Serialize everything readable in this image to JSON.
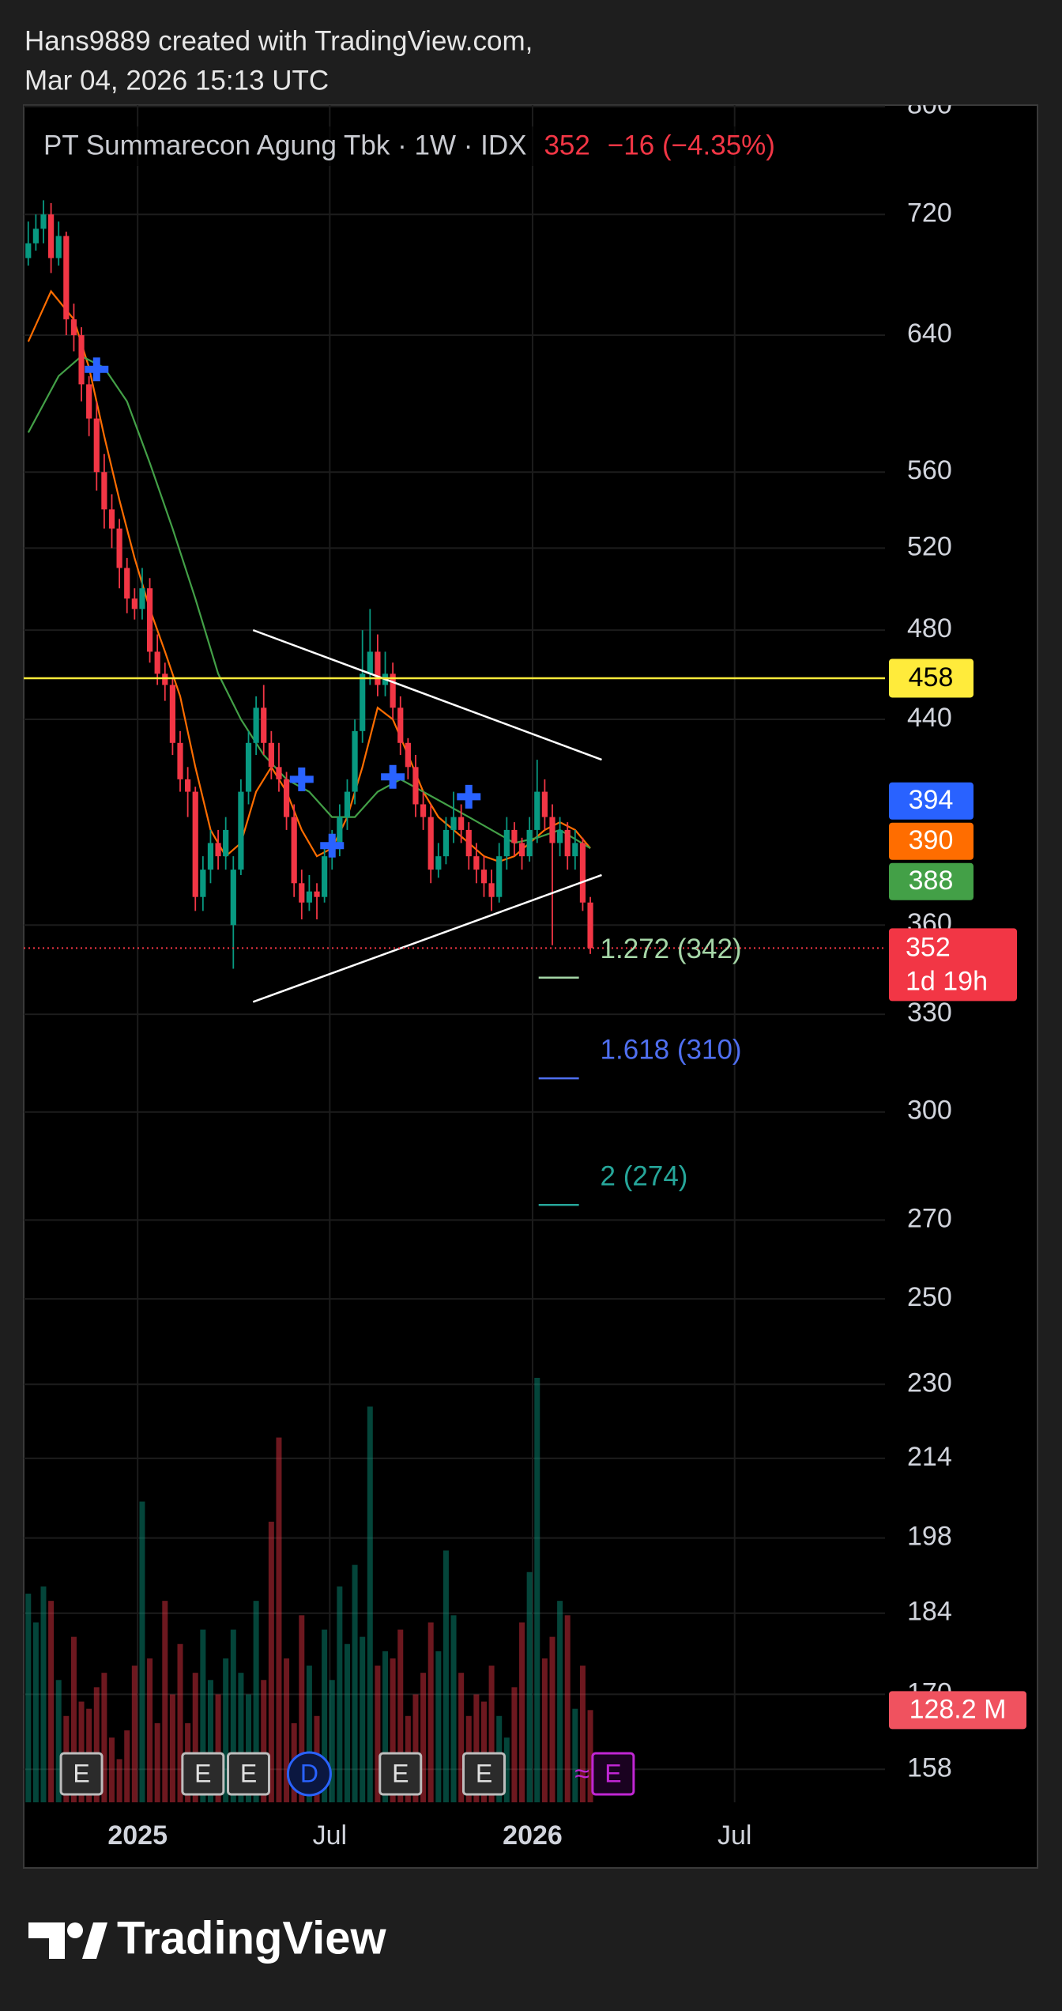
{
  "header": {
    "line1": "Hans9889 created with TradingView.com,",
    "line2": "Mar 04, 2026 15:13 UTC"
  },
  "footer": {
    "brand": "TradingView"
  },
  "chart_data": {
    "type": "candlestick",
    "log_scale": true,
    "grid": true,
    "legend": {
      "title": "PT Summarecon Agung Tbk · 1W · IDX",
      "change": "−16 (−4.35%)"
    },
    "up_color": "#089981",
    "down_color": "#f23645",
    "xlim": [
      -0.6,
      112.8
    ],
    "xticks": [
      {
        "value": 14.4,
        "label": "2025"
      },
      {
        "value": 39.7,
        "label": "Jul"
      },
      {
        "value": 66.4,
        "label": "2026"
      },
      {
        "value": 93,
        "label": "Jul"
      }
    ],
    "ylim": [
      153,
      801
    ],
    "yticks": [
      800,
      720,
      640,
      560,
      520,
      480,
      440,
      360,
      330,
      300,
      270,
      250,
      230,
      214,
      198,
      184,
      170,
      158
    ],
    "open": [
      690,
      700,
      710,
      720,
      690,
      705,
      650,
      640,
      610,
      590,
      560,
      540,
      530,
      510,
      495,
      490,
      500,
      470,
      460,
      455,
      430,
      415,
      410,
      370,
      380,
      390,
      385,
      360,
      380,
      410,
      430,
      445,
      430,
      420,
      415,
      400,
      375,
      368,
      372,
      370,
      385,
      390,
      400,
      410,
      435,
      460,
      470,
      455,
      460,
      445,
      430,
      420,
      405,
      400,
      380,
      385,
      395,
      400,
      395,
      385,
      380,
      375,
      370,
      385,
      395,
      390,
      385,
      395,
      410,
      400,
      390,
      395,
      385,
      390,
      368
    ],
    "high": [
      715,
      720,
      730,
      728,
      715,
      708,
      660,
      645,
      615,
      600,
      570,
      548,
      535,
      515,
      500,
      510,
      505,
      478,
      465,
      458,
      435,
      420,
      412,
      385,
      395,
      395,
      400,
      385,
      415,
      435,
      450,
      455,
      435,
      430,
      418,
      405,
      380,
      378,
      375,
      390,
      395,
      405,
      415,
      440,
      480,
      490,
      478,
      470,
      465,
      450,
      432,
      425,
      410,
      405,
      390,
      400,
      410,
      405,
      398,
      390,
      385,
      380,
      390,
      400,
      398,
      392,
      400,
      423,
      415,
      405,
      400,
      398,
      395,
      392,
      370
    ],
    "low": [
      685,
      695,
      700,
      680,
      685,
      640,
      630,
      600,
      580,
      550,
      530,
      520,
      500,
      488,
      485,
      485,
      465,
      455,
      448,
      425,
      410,
      400,
      365,
      365,
      375,
      380,
      380,
      345,
      378,
      405,
      425,
      425,
      415,
      410,
      395,
      370,
      362,
      365,
      362,
      368,
      380,
      385,
      395,
      405,
      430,
      455,
      450,
      450,
      440,
      425,
      415,
      400,
      395,
      375,
      377,
      382,
      390,
      390,
      380,
      375,
      370,
      365,
      368,
      380,
      385,
      380,
      383,
      390,
      395,
      353,
      385,
      380,
      380,
      365,
      350
    ],
    "close": [
      700,
      710,
      720,
      690,
      705,
      650,
      640,
      610,
      590,
      560,
      540,
      530,
      510,
      495,
      490,
      500,
      470,
      460,
      455,
      430,
      415,
      410,
      370,
      380,
      390,
      385,
      395,
      380,
      410,
      430,
      445,
      430,
      420,
      415,
      400,
      375,
      368,
      372,
      370,
      385,
      390,
      400,
      410,
      435,
      460,
      470,
      455,
      460,
      445,
      430,
      420,
      405,
      400,
      380,
      385,
      395,
      400,
      395,
      385,
      380,
      375,
      370,
      385,
      395,
      390,
      385,
      395,
      410,
      400,
      390,
      395,
      385,
      390,
      368,
      352
    ],
    "volume": {
      "label": "128.2 M",
      "values": [
        290,
        250,
        300,
        280,
        170,
        120,
        230,
        140,
        130,
        160,
        180,
        90,
        60,
        100,
        190,
        418,
        200,
        110,
        280,
        150,
        220,
        110,
        180,
        240,
        170,
        150,
        200,
        240,
        180,
        150,
        280,
        170,
        390,
        507,
        200,
        110,
        260,
        190,
        120,
        240,
        170,
        300,
        220,
        330,
        230,
        550,
        190,
        210,
        200,
        240,
        120,
        150,
        180,
        250,
        210,
        350,
        260,
        180,
        120,
        150,
        140,
        190,
        120,
        90,
        160,
        250,
        320,
        590,
        200,
        230,
        280,
        260,
        130,
        190,
        128.2
      ]
    },
    "moving_averages": [
      {
        "color": "#ff6d00",
        "x": [
          0,
          3,
          6,
          8,
          10,
          12,
          14,
          16,
          18,
          20,
          22,
          24,
          26,
          28,
          30,
          32,
          34,
          36,
          38,
          40,
          42,
          44,
          46,
          48,
          50,
          52,
          54,
          56,
          58,
          60,
          62,
          64,
          66,
          68,
          70,
          72,
          74
        ],
        "values": [
          636,
          668,
          650,
          620,
          580,
          545,
          515,
          490,
          470,
          450,
          420,
          395,
          385,
          390,
          410,
          420,
          410,
          395,
          385,
          388,
          400,
          420,
          445,
          440,
          425,
          410,
          400,
          395,
          390,
          385,
          383,
          385,
          390,
          395,
          398,
          395,
          388
        ]
      },
      {
        "color": "#43a047",
        "x": [
          0,
          4,
          7,
          10,
          13,
          16,
          19,
          22,
          25,
          28,
          31,
          34,
          37,
          40,
          43,
          46,
          49,
          52,
          55,
          58,
          61,
          64,
          67,
          70,
          74
        ],
        "values": [
          582,
          615,
          627,
          620,
          600,
          565,
          530,
          495,
          460,
          440,
          425,
          415,
          410,
          400,
          400,
          410,
          415,
          410,
          405,
          400,
          395,
          390,
          392,
          395,
          388
        ]
      }
    ],
    "ma_labels": [
      {
        "value": 394,
        "color": "#2962ff"
      },
      {
        "value": 390,
        "color": "#ff6d00"
      },
      {
        "value": 388,
        "color": "#43a047"
      }
    ],
    "hline": {
      "value": 458,
      "color": "#ffeb3b"
    },
    "price_line": {
      "value": 352,
      "countdown": "1d 19h"
    },
    "trendlines": [
      {
        "x": [
          29.6,
          75.5
        ],
        "y": [
          480,
          423
        ]
      },
      {
        "x": [
          29.6,
          75.5
        ],
        "y": [
          334,
          378
        ]
      }
    ],
    "fib_levels": [
      {
        "label": "1.272 (342)",
        "value": 342,
        "color": "#a5d6a7"
      },
      {
        "label": "1.618 (310)",
        "value": 310,
        "color": "#4f6ff0"
      },
      {
        "label": "2 (274)",
        "value": 274,
        "color": "#26a69a"
      }
    ],
    "markers": [
      {
        "x": 9,
        "y": 619
      },
      {
        "x": 36,
        "y": 415
      },
      {
        "x": 40,
        "y": 389
      },
      {
        "x": 48,
        "y": 416
      },
      {
        "x": 58,
        "y": 408
      }
    ],
    "events": [
      {
        "x": 7,
        "label": "E"
      },
      {
        "x": 23,
        "label": "E"
      },
      {
        "x": 29,
        "label": "E"
      },
      {
        "x": 37,
        "label": "D"
      },
      {
        "x": 49,
        "label": "E"
      },
      {
        "x": 60,
        "label": "E"
      },
      {
        "x": 77,
        "label": "E",
        "prefix": "≈"
      }
    ]
  }
}
